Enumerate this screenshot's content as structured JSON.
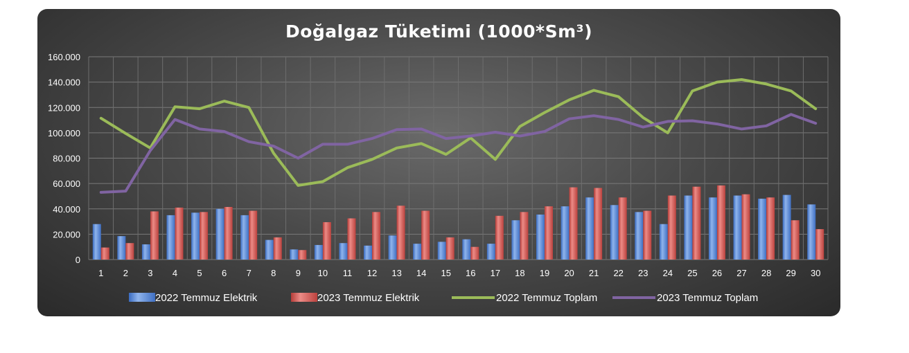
{
  "chart_data": {
    "type": "bar",
    "title": "Doğalgaz Tüketimi (1000*Sm³)",
    "categories": [
      "1",
      "2",
      "3",
      "4",
      "5",
      "6",
      "7",
      "8",
      "9",
      "10",
      "11",
      "12",
      "13",
      "14",
      "15",
      "16",
      "17",
      "18",
      "19",
      "20",
      "21",
      "22",
      "23",
      "24",
      "25",
      "26",
      "27",
      "28",
      "29",
      "30"
    ],
    "y_ticks": [
      "0",
      "20.000",
      "40.000",
      "60.000",
      "80.000",
      "100.000",
      "120.000",
      "140.000",
      "160.000"
    ],
    "ylim": [
      0,
      160000
    ],
    "grid": true,
    "legend_position": "bottom",
    "series": [
      {
        "name": "2022 Temmuz Elektrik",
        "kind": "bar",
        "color": "#5b8ad6",
        "values": [
          28000,
          18500,
          12000,
          35000,
          37000,
          40000,
          35000,
          15500,
          8000,
          11500,
          13000,
          11000,
          19000,
          12500,
          14000,
          16000,
          12500,
          31000,
          35500,
          42000,
          49000,
          43000,
          37500,
          28000,
          50500,
          49000,
          50500,
          48000,
          51000,
          43500
        ]
      },
      {
        "name": "2023 Temmuz Elektrik",
        "kind": "bar",
        "color": "#d65b57",
        "values": [
          9500,
          13000,
          38000,
          41000,
          37500,
          41500,
          38500,
          17500,
          7500,
          29500,
          32500,
          37500,
          42500,
          38500,
          17500,
          10000,
          34500,
          37500,
          42000,
          57000,
          56500,
          49000,
          38500,
          50500,
          57500,
          58500,
          51500,
          49000,
          31000,
          24000
        ]
      },
      {
        "name": "2022 Temmuz Toplam",
        "kind": "line",
        "color": "#9bbb59",
        "values": [
          111500,
          99500,
          88000,
          120500,
          119000,
          125000,
          120000,
          84000,
          58500,
          61500,
          72500,
          79000,
          88000,
          91500,
          83000,
          96000,
          79000,
          105000,
          116000,
          126000,
          133500,
          128500,
          112000,
          100000,
          133000,
          140000,
          142000,
          138500,
          133000,
          119000
        ]
      },
      {
        "name": "2023 Temmuz Toplam",
        "kind": "line",
        "color": "#8064a2",
        "values": [
          53000,
          54000,
          86000,
          110500,
          103000,
          101000,
          93000,
          89500,
          80000,
          91000,
          91000,
          95500,
          102500,
          103000,
          95500,
          97500,
          100500,
          97500,
          101000,
          111000,
          113500,
          110500,
          104500,
          109000,
          109500,
          107000,
          103000,
          105500,
          114500,
          107500
        ]
      }
    ]
  }
}
